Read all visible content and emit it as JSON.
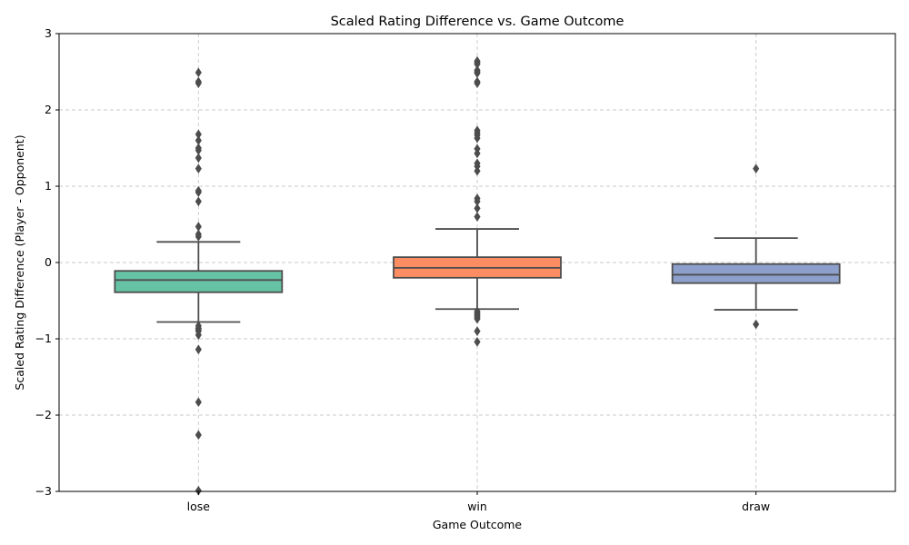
{
  "chart_data": {
    "type": "box",
    "title": "Scaled Rating Difference vs. Game Outcome",
    "xlabel": "Game Outcome",
    "ylabel": "Scaled Rating Difference (Player - Opponent)",
    "ylim": [
      -3,
      3
    ],
    "yticks": [
      -3,
      -2,
      -1,
      0,
      1,
      2,
      3
    ],
    "ytick_labels": [
      "−3",
      "−2",
      "−1",
      "0",
      "1",
      "2",
      "3"
    ],
    "grid": true,
    "categories": [
      "lose",
      "win",
      "draw"
    ],
    "colors": [
      "#66c2a5",
      "#fc8d62",
      "#8da0cb"
    ],
    "edge_color": "#4d4d4d",
    "boxes": [
      {
        "category": "lose",
        "whisker_low": -0.78,
        "q1": -0.39,
        "median": -0.23,
        "q3": -0.11,
        "whisker_high": 0.27,
        "outliers": [
          2.49,
          2.37,
          2.35,
          1.68,
          1.6,
          1.5,
          1.47,
          1.37,
          1.23,
          0.94,
          0.92,
          0.8,
          0.47,
          0.37,
          0.34,
          -0.83,
          -0.86,
          -0.88,
          -0.9,
          -0.95,
          -1.14,
          -1.83,
          -2.26,
          -2.99
        ]
      },
      {
        "category": "win",
        "whisker_low": -0.61,
        "q1": -0.2,
        "median": -0.07,
        "q3": 0.07,
        "whisker_high": 0.44,
        "outliers": [
          2.64,
          2.62,
          2.6,
          2.52,
          2.5,
          2.48,
          2.37,
          2.35,
          1.73,
          1.7,
          1.67,
          1.63,
          1.49,
          1.43,
          1.3,
          1.26,
          1.2,
          0.84,
          0.8,
          0.71,
          0.6,
          -0.64,
          -0.66,
          -0.68,
          -0.7,
          -0.72,
          -0.74,
          -0.9,
          -1.04
        ]
      },
      {
        "category": "draw",
        "whisker_low": -0.62,
        "q1": -0.27,
        "median": -0.16,
        "q3": -0.02,
        "whisker_high": 0.32,
        "outliers": [
          1.23,
          -0.81
        ]
      }
    ]
  }
}
